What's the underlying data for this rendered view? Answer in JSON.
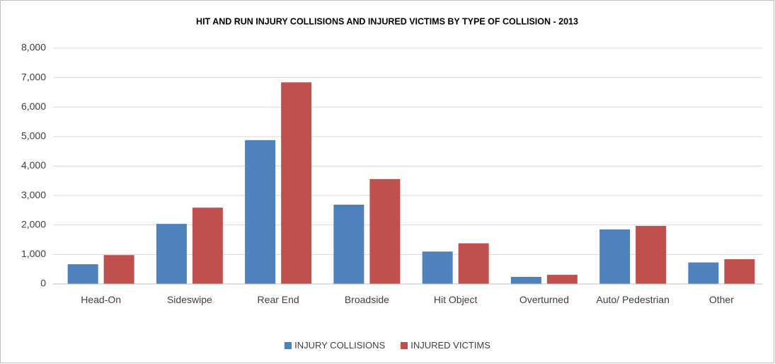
{
  "chart_data": {
    "type": "bar",
    "title": "HIT AND RUN INJURY COLLISIONS AND INJURED VICTIMS BY TYPE OF COLLISION - 2013",
    "categories": [
      "Head-On",
      "Sideswipe",
      "Rear End",
      "Broadside",
      "Hit Object",
      "Overturned",
      "Auto/ Pedestrian",
      "Other"
    ],
    "series": [
      {
        "name": "INJURY COLLISIONS",
        "color": "#4f81bd",
        "values": [
          670,
          2040,
          4880,
          2690,
          1100,
          240,
          1850,
          730
        ]
      },
      {
        "name": "INJURED VICTIMS",
        "color": "#c0504d",
        "values": [
          980,
          2590,
          6840,
          3560,
          1380,
          310,
          1970,
          840
        ]
      }
    ],
    "ylim": [
      0,
      8000
    ],
    "yticks": [
      0,
      {
        "value": 1000,
        "label": "1,000"
      },
      {
        "value": 2000,
        "label": "2,000"
      },
      {
        "value": 3000,
        "label": "3,000"
      },
      {
        "value": 4000,
        "label": "4,000"
      },
      {
        "value": 5000,
        "label": "5,000"
      },
      {
        "value": 6000,
        "label": "6,000"
      },
      {
        "value": 7000,
        "label": "7,000"
      },
      {
        "value": 8000,
        "label": "8,000"
      }
    ],
    "grid": true,
    "legend": "bottom"
  }
}
